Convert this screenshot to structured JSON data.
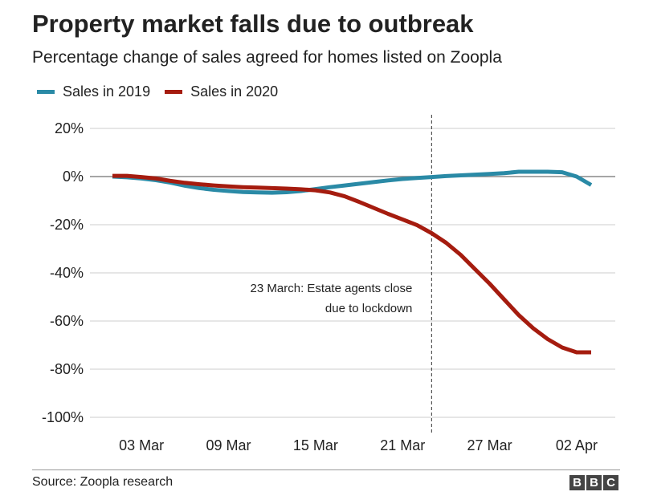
{
  "header": {
    "title": "Property market falls due to outbreak",
    "subtitle": "Percentage change of sales agreed for homes listed on Zoopla"
  },
  "footer": {
    "source": "Source: Zoopla research",
    "logo_letters": [
      "B",
      "B",
      "C"
    ]
  },
  "colors": {
    "series_2019": "#2a8aa6",
    "series_2020": "#a51c0f",
    "grid": "#cccccc",
    "zero_line": "#888888",
    "text": "#222222"
  },
  "chart_data": {
    "type": "line",
    "title": "Property market falls due to outbreak",
    "subtitle": "Percentage change of sales agreed for homes listed on Zoopla",
    "xlabel": "",
    "ylabel": "",
    "ylim": [
      -100,
      20
    ],
    "y_ticks": [
      20,
      0,
      -20,
      -40,
      -60,
      -80,
      -100
    ],
    "y_tick_labels": [
      "20%",
      "0%",
      "-20%",
      "-40%",
      "-60%",
      "-80%",
      "-100%"
    ],
    "x_ticks": [
      3,
      9,
      15,
      21,
      27,
      33
    ],
    "x_tick_labels": [
      "03 Mar",
      "09 Mar",
      "15 Mar",
      "21 Mar",
      "27 Mar",
      "02 Apr"
    ],
    "x_unit": "day of March 2020 (02 Apr = 33)",
    "grid": true,
    "legend": "top-left",
    "series": [
      {
        "name": "Sales in 2019",
        "color": "#2a8aa6",
        "x": [
          1,
          2,
          3,
          4,
          5,
          6,
          7,
          8,
          9,
          10,
          11,
          12,
          13,
          14,
          15,
          16,
          17,
          18,
          19,
          20,
          21,
          22,
          23,
          24,
          25,
          26,
          27,
          28,
          29,
          30,
          31,
          32,
          33,
          34
        ],
        "values": [
          0,
          -0.3,
          -0.8,
          -1.5,
          -2.5,
          -3.8,
          -4.8,
          -5.5,
          -6,
          -6.4,
          -6.6,
          -6.7,
          -6.5,
          -6,
          -5.2,
          -4.4,
          -3.7,
          -3,
          -2.3,
          -1.6,
          -1,
          -0.6,
          -0.2,
          0.2,
          0.5,
          0.8,
          1.1,
          1.4,
          2,
          2,
          2,
          1.8,
          0,
          -3.5
        ]
      },
      {
        "name": "Sales in 2020",
        "color": "#a51c0f",
        "x": [
          1,
          2,
          3,
          4,
          5,
          6,
          7,
          8,
          9,
          10,
          11,
          12,
          13,
          14,
          15,
          16,
          17,
          18,
          19,
          20,
          21,
          22,
          23,
          24,
          25,
          26,
          27,
          28,
          29,
          30,
          31,
          32,
          33,
          34
        ],
        "values": [
          0.3,
          0.3,
          -0.2,
          -0.8,
          -1.8,
          -2.6,
          -3.2,
          -3.7,
          -4.1,
          -4.4,
          -4.6,
          -4.8,
          -5,
          -5.3,
          -5.7,
          -6.6,
          -8.2,
          -10.5,
          -13,
          -15.5,
          -17.8,
          -20.2,
          -23.5,
          -27.5,
          -32.5,
          -38.5,
          -44.5,
          -51,
          -57.5,
          -63,
          -67.5,
          -71,
          -73,
          -73
        ]
      }
    ],
    "annotations": [
      {
        "x": 23,
        "style": "dashed-vertical-line",
        "label_lines": [
          "23 March: Estate agents close",
          "due to lockdown"
        ]
      }
    ]
  }
}
